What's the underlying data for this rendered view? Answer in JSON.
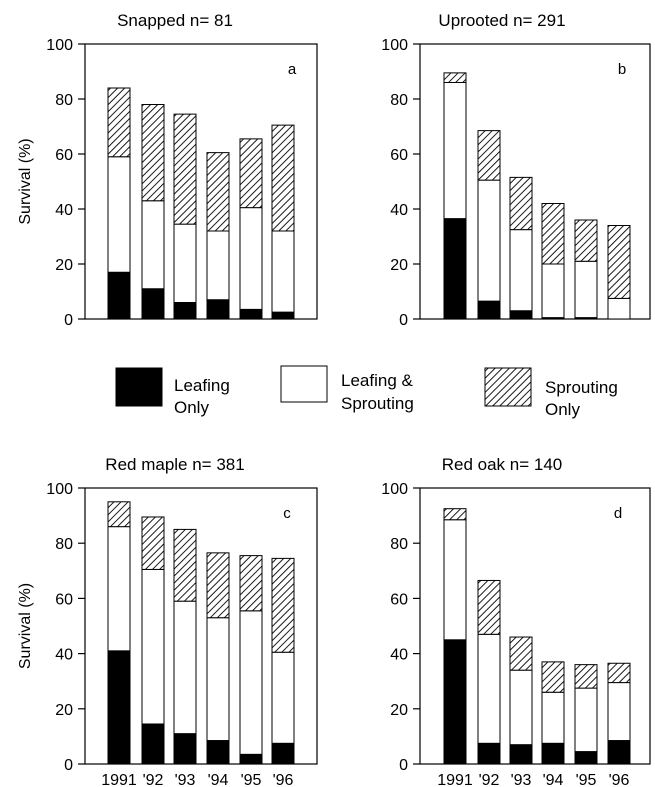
{
  "legend": {
    "items": [
      {
        "label_lines": [
          "Leafing",
          "Only"
        ],
        "fill": "black"
      },
      {
        "label_lines": [
          "Leafing &",
          "Sprouting"
        ],
        "fill": "white"
      },
      {
        "label_lines": [
          "Sprouting",
          "Only"
        ],
        "fill": "hatch"
      }
    ]
  },
  "colors": {
    "leafing_only": "#000000",
    "leafing_sprouting": "#ffffff",
    "sprouting_only": "hatch"
  },
  "chart_data": [
    {
      "type": "bar",
      "stacked": true,
      "title": "Snapped n= 81",
      "panel_letter": "a",
      "ylabel": "Survival (%)",
      "xlabel": "",
      "ylim": [
        0,
        100
      ],
      "yticks": [
        "0",
        "20",
        "40",
        "60",
        "80",
        "100"
      ],
      "categories": [
        "",
        "",
        "",
        "",
        "",
        ""
      ],
      "series": [
        {
          "name": "Leafing Only",
          "values": [
            17,
            11,
            6,
            7,
            3.5,
            2.5
          ]
        },
        {
          "name": "Leafing & Sprouting",
          "values": [
            42,
            32,
            28.5,
            25,
            37,
            29.5
          ]
        },
        {
          "name": "Sprouting Only",
          "values": [
            25,
            35,
            40,
            28.5,
            25,
            38.5
          ]
        }
      ]
    },
    {
      "type": "bar",
      "stacked": true,
      "title": "Uprooted n= 291",
      "panel_letter": "b",
      "ylabel": "",
      "xlabel": "",
      "ylim": [
        0,
        100
      ],
      "yticks": [
        "0",
        "20",
        "40",
        "60",
        "80",
        "100"
      ],
      "categories": [
        "",
        "",
        "",
        "",
        "",
        ""
      ],
      "series": [
        {
          "name": "Leafing Only",
          "values": [
            36.5,
            6.5,
            3,
            0.5,
            0.5,
            0
          ]
        },
        {
          "name": "Leafing & Sprouting",
          "values": [
            49.5,
            44,
            29.5,
            19.5,
            20.5,
            7.5
          ]
        },
        {
          "name": "Sprouting Only",
          "values": [
            3.5,
            18,
            19,
            22,
            15,
            26.5
          ]
        }
      ]
    },
    {
      "type": "bar",
      "stacked": true,
      "title": "Red maple n= 381",
      "panel_letter": "c",
      "ylabel": "Survival (%)",
      "xlabel": "",
      "ylim": [
        0,
        100
      ],
      "yticks": [
        "0",
        "20",
        "40",
        "60",
        "80",
        "100"
      ],
      "categories": [
        "1991",
        "'92",
        "'93",
        "'94",
        "'95",
        "'96"
      ],
      "series": [
        {
          "name": "Leafing Only",
          "values": [
            41,
            14.5,
            11,
            8.5,
            3.5,
            7.5
          ]
        },
        {
          "name": "Leafing & Sprouting",
          "values": [
            45,
            56,
            48,
            44.5,
            52,
            33
          ]
        },
        {
          "name": "Sprouting Only",
          "values": [
            9,
            19,
            26,
            23.5,
            20,
            34
          ]
        }
      ]
    },
    {
      "type": "bar",
      "stacked": true,
      "title": "Red oak n= 140",
      "panel_letter": "d",
      "ylabel": "",
      "xlabel": "",
      "ylim": [
        0,
        100
      ],
      "yticks": [
        "0",
        "20",
        "40",
        "60",
        "80",
        "100"
      ],
      "categories": [
        "1991",
        "'92",
        "'93",
        "'94",
        "'95",
        "'96"
      ],
      "series": [
        {
          "name": "Leafing Only",
          "values": [
            45,
            7.5,
            7,
            7.5,
            4.5,
            8.5
          ]
        },
        {
          "name": "Leafing & Sprouting",
          "values": [
            43.5,
            39.5,
            27,
            18.5,
            23,
            21
          ]
        },
        {
          "name": "Sprouting Only",
          "values": [
            4,
            19.5,
            12,
            11,
            8.5,
            7
          ]
        }
      ]
    }
  ]
}
